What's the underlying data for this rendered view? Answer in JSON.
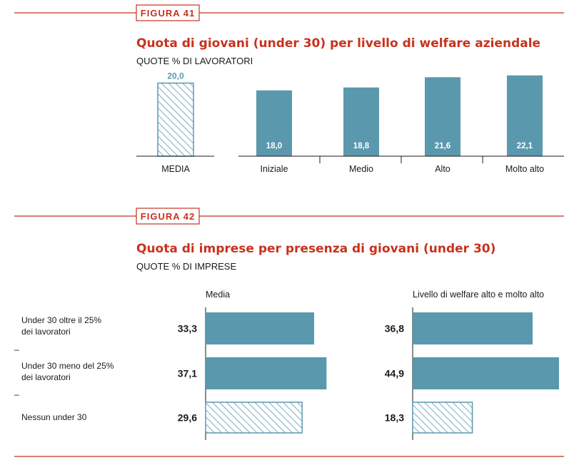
{
  "colors": {
    "accent": "#c8321e",
    "bar": "#5a98ad",
    "text": "#1a1a1a"
  },
  "figure41": {
    "label": "FIGURA 41",
    "title": "Quota di giovani (under 30) per livello di welfare aziendale",
    "subtitle": "QUOTE % DI LAVORATORI"
  },
  "figure42": {
    "label": "FIGURA 42",
    "title": "Quota di imprese per presenza di giovani (under 30)",
    "subtitle": "QUOTE % DI IMPRESE",
    "row_labels": [
      [
        "Under 30 oltre il 25%",
        "dei lavoratori"
      ],
      [
        "Under 30 meno del 25%",
        "dei lavoratori"
      ],
      [
        "Nessun under 30"
      ]
    ],
    "separator": "–"
  },
  "chart_data": [
    {
      "type": "bar",
      "title": "Quota di giovani (under 30) per livello di welfare aziendale",
      "subtitle": "QUOTE % DI LAVORATORI",
      "categories": [
        "MEDIA",
        "Iniziale",
        "Medio",
        "Alto",
        "Molto alto"
      ],
      "values": [
        20.0,
        18.0,
        18.8,
        21.6,
        22.1
      ],
      "value_labels": [
        "20,0",
        "18,0",
        "18,8",
        "21,6",
        "22,1"
      ],
      "highlight": "MEDIA (hatched)",
      "ylim": [
        0,
        24
      ]
    },
    {
      "type": "bar",
      "orientation": "horizontal",
      "title": "Quota di imprese per presenza di giovani (under 30)",
      "subtitle": "QUOTE % DI IMPRESE",
      "categories": [
        "Under 30 oltre il 25% dei lavoratori",
        "Under 30 meno del 25% dei lavoratori",
        "Nessun under 30"
      ],
      "series": [
        {
          "name": "Media",
          "values": [
            33.3,
            37.1,
            29.6
          ],
          "value_labels": [
            "33,3",
            "37,1",
            "29,6"
          ]
        },
        {
          "name": "Livello di welfare alto e molto alto",
          "values": [
            36.8,
            44.9,
            18.3
          ],
          "value_labels": [
            "36,8",
            "44,9",
            "18,3"
          ]
        }
      ],
      "highlight": "Nessun under 30 (hatched)",
      "xlim": [
        0,
        46
      ]
    }
  ]
}
